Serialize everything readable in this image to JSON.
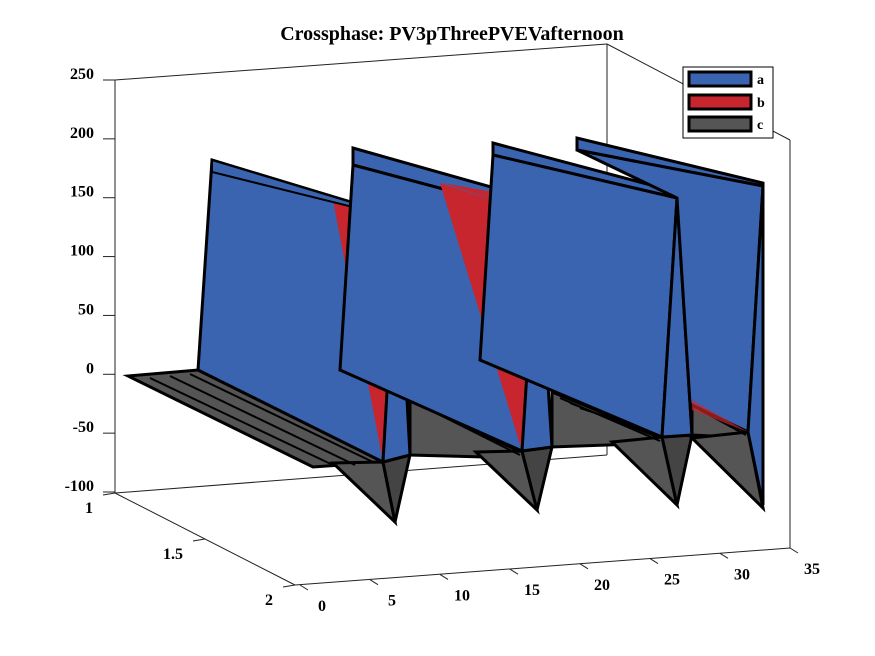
{
  "chart_data": {
    "type": "3d-surface",
    "title": "Crossphase: PV3pThreePVEVafternoon",
    "xlabel": "",
    "ylabel": "",
    "zlabel": "",
    "x_ticks": [
      "0",
      "5",
      "10",
      "15",
      "20",
      "25",
      "30",
      "35"
    ],
    "y_ticks": [
      "1",
      "1.5",
      "2"
    ],
    "z_ticks": [
      "250",
      "200",
      "150",
      "100",
      "50",
      "0",
      "-50",
      "-100"
    ],
    "xlim": [
      0,
      35
    ],
    "ylim": [
      1,
      2
    ],
    "zlim": [
      -100,
      250
    ],
    "legend_position": "top-right",
    "series": [
      {
        "name": "a",
        "color": "#3a64b0",
        "peaks_at_x": [
          3,
          13,
          22,
          31
        ],
        "max": 180,
        "min": -60
      },
      {
        "name": "b",
        "color": "#c8262e",
        "peaks_at_x": [
          10,
          19,
          27
        ],
        "max": 150,
        "min": -60
      },
      {
        "name": "c",
        "color": "#555555",
        "max": 0,
        "min": -100
      }
    ]
  }
}
